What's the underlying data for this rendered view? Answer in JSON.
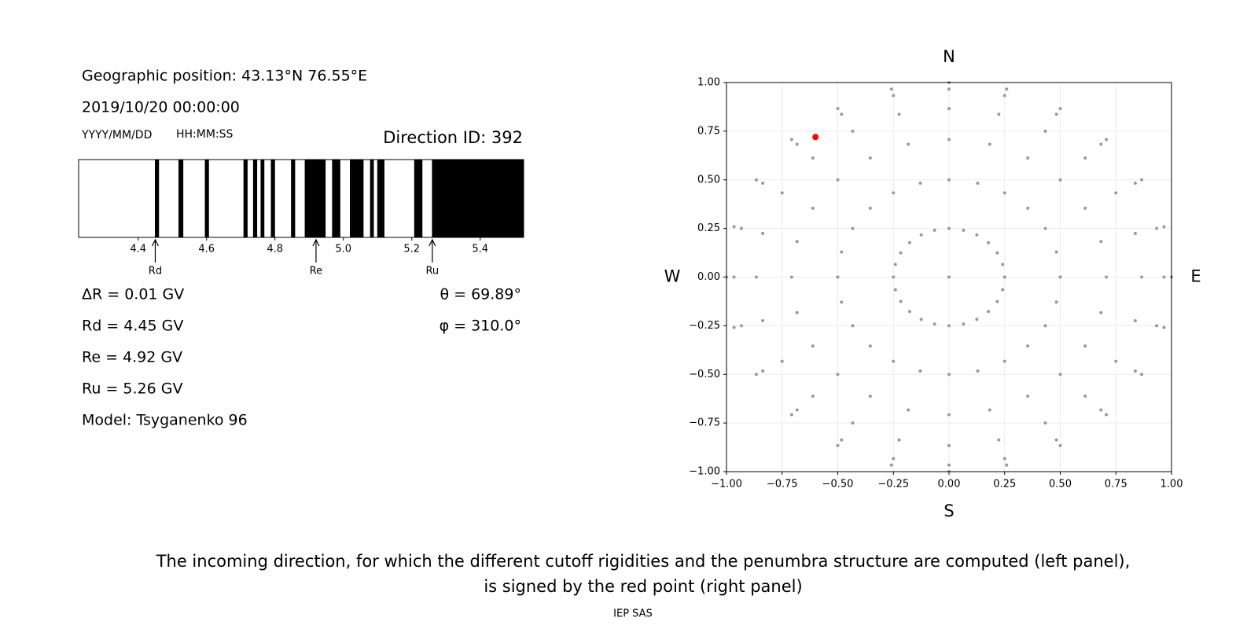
{
  "info": {
    "position": "Geographic position: 43.13°N 76.55°E",
    "datetime": "2019/10/20 00:00:00",
    "date_format": "YYYY/MM/DD",
    "time_format": "HH:MM:SS",
    "direction": "Direction ID: 392",
    "left_lines": [
      "ΔR = 0.01 GV",
      "Rd = 4.45 GV",
      "Re = 4.92 GV",
      "Ru = 5.26 GV",
      "Model: Tsyganenko 96"
    ],
    "right_lines": [
      "θ = 69.89°",
      "φ = 310.0°"
    ],
    "caption": [
      "The incoming direction, for which the different cutoff rigidities and the penumbra structure are computed (left panel),",
      "is signed by the red point (right panel)"
    ],
    "footer": "IEP SAS"
  },
  "chart_data": [
    {
      "type": "band",
      "xlim": [
        4.226,
        5.527
      ],
      "xticks": [
        4.4,
        4.6,
        4.8,
        {
          "value": 5,
          "label": "5.0"
        },
        5.2,
        5.4
      ],
      "color": "#000000",
      "bands": [
        [
          4.449,
          4.461
        ],
        [
          4.518,
          4.532
        ],
        [
          4.595,
          4.607
        ],
        [
          4.708,
          4.72
        ],
        [
          4.736,
          4.748
        ],
        [
          4.758,
          4.769
        ],
        [
          4.788,
          4.8
        ],
        [
          4.847,
          4.859
        ],
        [
          4.887,
          4.948
        ],
        [
          4.967,
          4.991
        ],
        [
          5.019,
          5.059
        ],
        [
          5.078,
          5.089
        ],
        [
          5.099,
          5.12
        ],
        [
          5.207,
          5.231
        ],
        [
          5.259,
          5.527
        ]
      ],
      "markers": [
        {
          "label": "Rd",
          "value": 4.45
        },
        {
          "label": "Re",
          "value": 4.92
        },
        {
          "label": "Ru",
          "value": 5.26
        }
      ]
    },
    {
      "type": "scatter",
      "top_label": "N",
      "bottom_label": "S",
      "left_label": "W",
      "right_label": "E",
      "xlim": [
        -1,
        1
      ],
      "ylim": [
        -1,
        1
      ],
      "grid": true,
      "xticks": [
        {
          "value": -1,
          "label": "−1.00"
        },
        {
          "value": -0.75,
          "label": "−0.75"
        },
        {
          "value": -0.5,
          "label": "−0.50"
        },
        {
          "value": -0.25,
          "label": "−0.25"
        },
        {
          "value": 0,
          "label": "0.00"
        },
        {
          "value": 0.25,
          "label": "0.25"
        },
        {
          "value": 0.5,
          "label": "0.50"
        },
        {
          "value": 0.75,
          "label": "0.75"
        },
        {
          "value": 1,
          "label": "1.00"
        }
      ],
      "yticks": [
        {
          "value": -1,
          "label": "−1.00"
        },
        {
          "value": -0.75,
          "label": "−0.75"
        },
        {
          "value": -0.5,
          "label": "−0.50"
        },
        {
          "value": -0.25,
          "label": "−0.25"
        },
        {
          "value": 0,
          "label": "0.00"
        },
        {
          "value": 0.25,
          "label": "0.25"
        },
        {
          "value": 0.5,
          "label": "0.50"
        },
        {
          "value": 0.75,
          "label": "0.75"
        },
        {
          "value": 1,
          "label": "1.00"
        }
      ],
      "series": [
        {
          "color": "#999999",
          "x": [
            0,
            1,
            0.966,
            0.866,
            0.707,
            0.5,
            0.259,
            0,
            -0.259,
            -0.5,
            -0.707,
            -0.866,
            -0.966,
            -1,
            -0.966,
            -0.866,
            -0.707,
            -0.5,
            -0.259,
            0,
            0.259,
            0.5,
            0.707,
            0.866,
            0.966,
            0.966,
            0.933,
            0.837,
            0.683,
            0.483,
            0.25,
            0,
            -0.25,
            -0.483,
            -0.683,
            -0.837,
            -0.933,
            -0.966,
            -0.933,
            -0.837,
            -0.683,
            -0.483,
            -0.25,
            0,
            0.25,
            0.483,
            0.683,
            0.837,
            0.933,
            0.866,
            0.837,
            0.75,
            0.612,
            0.433,
            0.224,
            0,
            -0.224,
            -0.433,
            -0.612,
            -0.75,
            -0.837,
            -0.866,
            -0.837,
            -0.75,
            -0.612,
            -0.433,
            -0.224,
            0,
            0.224,
            0.433,
            0.612,
            0.75,
            0.837,
            0.707,
            0.683,
            0.612,
            0.5,
            0.354,
            0.183,
            0,
            -0.183,
            -0.354,
            -0.5,
            -0.612,
            -0.683,
            -0.707,
            -0.683,
            -0.612,
            -0.5,
            -0.354,
            -0.183,
            0,
            0.183,
            0.354,
            0.5,
            0.612,
            0.683,
            0.5,
            0.483,
            0.433,
            0.354,
            0.25,
            0.129,
            0,
            -0.129,
            -0.25,
            -0.354,
            -0.433,
            -0.483,
            -0.5,
            -0.483,
            -0.433,
            -0.354,
            -0.25,
            -0.129,
            0,
            0.129,
            0.25,
            0.354,
            0.433,
            0.483,
            0.25,
            0.241,
            0.217,
            0.177,
            0.125,
            0.065,
            0,
            -0.065,
            -0.125,
            -0.177,
            -0.217,
            -0.241,
            -0.25,
            -0.241,
            -0.217,
            -0.177,
            -0.125,
            -0.065,
            0,
            0.065,
            0.125,
            0.177,
            0.217,
            0.241
          ],
          "y": [
            0,
            0,
            0.259,
            0.5,
            0.707,
            0.866,
            0.966,
            1,
            0.966,
            0.866,
            0.707,
            0.5,
            0.259,
            0,
            -0.259,
            -0.5,
            -0.707,
            -0.866,
            -0.966,
            -1,
            -0.966,
            -0.866,
            -0.707,
            -0.5,
            -0.259,
            0,
            0.25,
            0.483,
            0.683,
            0.837,
            0.933,
            0.966,
            0.933,
            0.837,
            0.683,
            0.483,
            0.25,
            0,
            -0.25,
            -0.483,
            -0.683,
            -0.837,
            -0.933,
            -0.966,
            -0.933,
            -0.837,
            -0.683,
            -0.483,
            -0.25,
            0,
            0.224,
            0.433,
            0.612,
            0.75,
            0.837,
            0.866,
            0.837,
            0.75,
            0.612,
            0.433,
            0.224,
            0,
            -0.224,
            -0.433,
            -0.612,
            -0.75,
            -0.837,
            -0.866,
            -0.837,
            -0.75,
            -0.612,
            -0.433,
            -0.224,
            0,
            0.183,
            0.354,
            0.5,
            0.612,
            0.683,
            0.707,
            0.683,
            0.612,
            0.5,
            0.354,
            0.183,
            0,
            -0.183,
            -0.354,
            -0.5,
            -0.612,
            -0.683,
            -0.707,
            -0.683,
            -0.612,
            -0.5,
            -0.354,
            -0.183,
            0,
            0.129,
            0.25,
            0.354,
            0.433,
            0.483,
            0.5,
            0.483,
            0.433,
            0.354,
            0.25,
            0.129,
            0,
            -0.129,
            -0.25,
            -0.354,
            -0.433,
            -0.483,
            -0.5,
            -0.483,
            -0.433,
            -0.354,
            -0.25,
            -0.129,
            0,
            0.065,
            0.125,
            0.177,
            0.217,
            0.241,
            0.25,
            0.241,
            0.217,
            0.177,
            0.125,
            0.065,
            0,
            -0.065,
            -0.125,
            -0.177,
            -0.217,
            -0.241,
            -0.25,
            -0.241,
            -0.217,
            -0.177,
            -0.125,
            -0.065
          ],
          "size": 2
        },
        {
          "color": "#ff0000",
          "x": [
            -0.6
          ],
          "y": [
            0.72
          ],
          "size": 4
        }
      ]
    }
  ]
}
